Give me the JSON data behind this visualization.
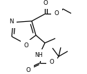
{
  "bg_color": "#ffffff",
  "lc": "#000000",
  "lw": 0.9,
  "fs": 5.2,
  "figsize": [
    1.26,
    1.08
  ],
  "dpi": 100,
  "xlim": [
    0,
    126
  ],
  "ylim": [
    0,
    108
  ]
}
